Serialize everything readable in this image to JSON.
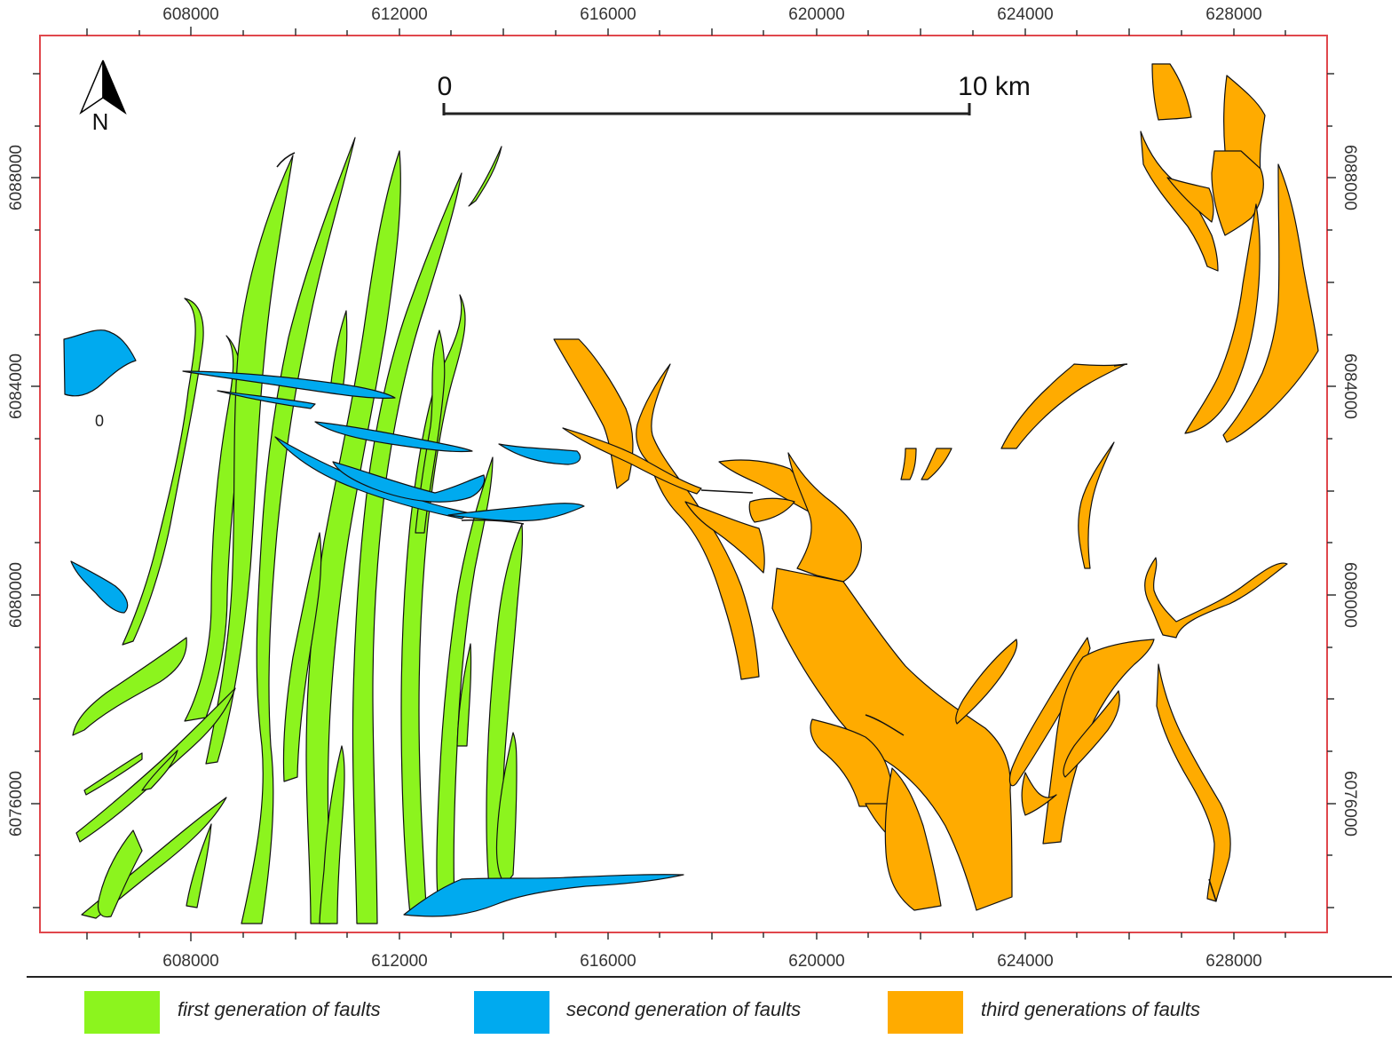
{
  "map": {
    "x_ticks": [
      "608000",
      "612000",
      "616000",
      "620000",
      "624000",
      "628000"
    ],
    "y_ticks": [
      "6088000",
      "6084000",
      "6080000",
      "6076000"
    ],
    "north_label": "N",
    "scale_start": "0",
    "scale_end": "10 km",
    "stray_label": "0"
  },
  "colors": {
    "first": "#8cf41e",
    "second": "#00aaef",
    "third": "#ffab00",
    "frame": "#e0474c"
  },
  "legend": {
    "items": [
      {
        "label": "first generation of faults"
      },
      {
        "label": "second generation of faults"
      },
      {
        "label": "third generations of faults"
      }
    ]
  }
}
